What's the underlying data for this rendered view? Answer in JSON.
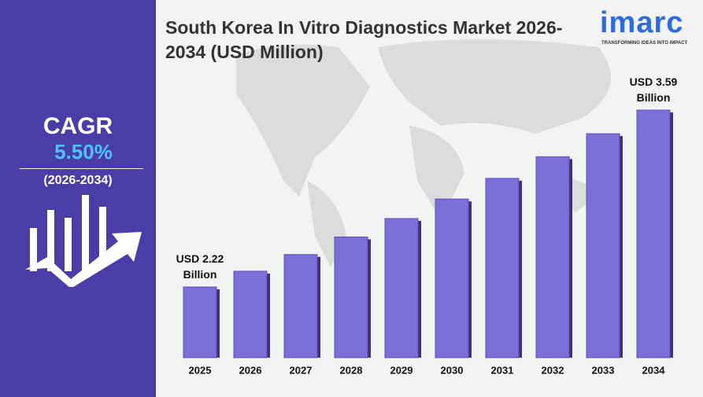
{
  "chart_data": {
    "type": "bar",
    "title": "South Korea In Vitro Diagnostics Market 2026-2034 (USD Million)",
    "categories": [
      "2025",
      "2026",
      "2027",
      "2028",
      "2029",
      "2030",
      "2031",
      "2032",
      "2033",
      "2034"
    ],
    "values": [
      2220,
      2342,
      2471,
      2607,
      2750,
      2901,
      3061,
      3229,
      3407,
      3590
    ],
    "value_labels": [
      "USD 2.22 Billion",
      null,
      null,
      null,
      null,
      null,
      null,
      null,
      null,
      "USD 3.59 Billion"
    ],
    "color": "#7b6fd8",
    "ylim": [
      1672,
      3700
    ]
  },
  "sidebar": {
    "label": "CAGR",
    "rate": "5.50%",
    "period": "(2026-2034)"
  },
  "logo": {
    "name": "imarc",
    "tagline": "TRANSFORMING IDEAS INTO IMPACT"
  }
}
